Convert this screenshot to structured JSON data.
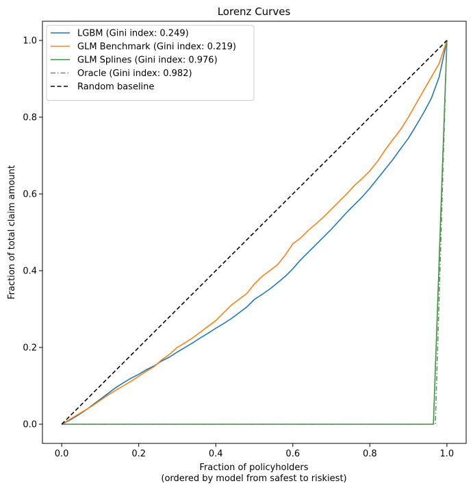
{
  "chart_data": {
    "type": "line",
    "title": "Lorenz Curves",
    "xlabel_line1": "Fraction of policyholders",
    "xlabel_line2": "(ordered by model from safest to riskiest)",
    "ylabel": "Fraction of total claim amount",
    "xlim": [
      -0.05,
      1.05
    ],
    "ylim": [
      -0.05,
      1.05
    ],
    "xticks": [
      "0.0",
      "0.2",
      "0.4",
      "0.6",
      "0.8",
      "1.0"
    ],
    "yticks": [
      "0.0",
      "0.2",
      "0.4",
      "0.6",
      "0.8",
      "1.0"
    ],
    "grid": false,
    "legend_position": "top-left",
    "series": [
      {
        "name": "LGBM (Gini index:  0.249)",
        "color": "#1f77b4",
        "style": "solid",
        "x": [
          0,
          0.02,
          0.04,
          0.06,
          0.08,
          0.1,
          0.12,
          0.14,
          0.16,
          0.18,
          0.2,
          0.22,
          0.24,
          0.26,
          0.28,
          0.3,
          0.32,
          0.34,
          0.36,
          0.38,
          0.4,
          0.42,
          0.44,
          0.46,
          0.48,
          0.5,
          0.52,
          0.54,
          0.56,
          0.58,
          0.6,
          0.62,
          0.64,
          0.66,
          0.68,
          0.7,
          0.72,
          0.74,
          0.76,
          0.78,
          0.8,
          0.82,
          0.84,
          0.86,
          0.88,
          0.9,
          0.92,
          0.94,
          0.96,
          0.98,
          1.0
        ],
        "y": [
          0,
          0.01,
          0.022,
          0.035,
          0.05,
          0.065,
          0.08,
          0.095,
          0.108,
          0.12,
          0.13,
          0.142,
          0.152,
          0.165,
          0.175,
          0.188,
          0.2,
          0.212,
          0.225,
          0.237,
          0.25,
          0.262,
          0.275,
          0.29,
          0.305,
          0.325,
          0.338,
          0.352,
          0.368,
          0.385,
          0.405,
          0.428,
          0.448,
          0.468,
          0.488,
          0.508,
          0.53,
          0.552,
          0.572,
          0.592,
          0.615,
          0.64,
          0.665,
          0.69,
          0.718,
          0.745,
          0.778,
          0.812,
          0.85,
          0.905,
          1.0
        ]
      },
      {
        "name": "GLM Benchmark (Gini index:  0.219)",
        "color": "#ff7f0e",
        "style": "solid",
        "x": [
          0,
          0.02,
          0.04,
          0.06,
          0.08,
          0.1,
          0.12,
          0.14,
          0.16,
          0.18,
          0.2,
          0.22,
          0.24,
          0.26,
          0.28,
          0.3,
          0.32,
          0.34,
          0.36,
          0.38,
          0.4,
          0.42,
          0.44,
          0.46,
          0.48,
          0.5,
          0.52,
          0.54,
          0.56,
          0.58,
          0.6,
          0.62,
          0.64,
          0.66,
          0.68,
          0.7,
          0.72,
          0.74,
          0.76,
          0.78,
          0.8,
          0.82,
          0.84,
          0.86,
          0.88,
          0.9,
          0.92,
          0.94,
          0.96,
          0.98,
          1.0
        ],
        "y": [
          0,
          0.012,
          0.024,
          0.036,
          0.048,
          0.062,
          0.076,
          0.088,
          0.1,
          0.112,
          0.125,
          0.138,
          0.15,
          0.168,
          0.182,
          0.2,
          0.212,
          0.225,
          0.24,
          0.255,
          0.27,
          0.29,
          0.31,
          0.325,
          0.34,
          0.365,
          0.385,
          0.4,
          0.415,
          0.44,
          0.47,
          0.485,
          0.505,
          0.522,
          0.54,
          0.56,
          0.58,
          0.6,
          0.622,
          0.64,
          0.66,
          0.685,
          0.715,
          0.742,
          0.768,
          0.8,
          0.835,
          0.87,
          0.905,
          0.94,
          1.0
        ]
      },
      {
        "name": "GLM Splines (Gini index:  0.976)",
        "color": "#2ca02c",
        "style": "solid",
        "x": [
          0,
          0.965,
          1.0
        ],
        "y": [
          0,
          0,
          1.0
        ]
      },
      {
        "name": "Oracle (Gini index:  0.982)",
        "color": "#7f7f7f",
        "style": "dashdot",
        "x": [
          0,
          0.97,
          1.0
        ],
        "y": [
          0,
          0,
          1.0
        ]
      },
      {
        "name": "Random baseline",
        "color": "#000000",
        "style": "dashed",
        "x": [
          0,
          1.0
        ],
        "y": [
          0,
          1.0
        ]
      }
    ]
  }
}
